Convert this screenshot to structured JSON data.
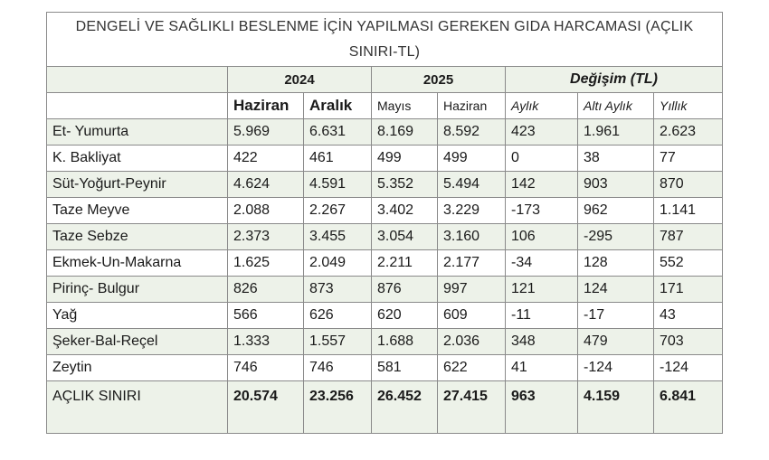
{
  "title": "DENGELİ VE SAĞLIKLI BESLENME İÇİN YAPILMASI GEREKEN GIDA HARCAMASI (AÇLIK SINIRI-TL)",
  "years": {
    "y2024": "2024",
    "y2025": "2025",
    "change": "Değişim (TL)"
  },
  "months": [
    "Haziran",
    "Aralık",
    "Mayıs",
    "Haziran",
    "Aylık",
    "Altı Aylık",
    "Yıllık"
  ],
  "rows": [
    {
      "label": "Et- Yumurta",
      "values": [
        "5.969",
        "6.631",
        "8.169",
        "8.592",
        "423",
        "1.961",
        "2.623"
      ]
    },
    {
      "label": "K. Bakliyat",
      "values": [
        "422",
        "461",
        "499",
        "499",
        "0",
        "38",
        "77"
      ]
    },
    {
      "label": "Süt-Yoğurt-Peynir",
      "values": [
        "4.624",
        "4.591",
        "5.352",
        "5.494",
        "142",
        "903",
        "870"
      ]
    },
    {
      "label": "Taze Meyve",
      "values": [
        "2.088",
        "2.267",
        "3.402",
        "3.229",
        "-173",
        "962",
        "1.141"
      ]
    },
    {
      "label": "Taze Sebze",
      "values": [
        "2.373",
        "3.455",
        "3.054",
        "3.160",
        "106",
        "-295",
        "787"
      ]
    },
    {
      "label": "Ekmek-Un-Makarna",
      "values": [
        "1.625",
        "2.049",
        "2.211",
        "2.177",
        "-34",
        "128",
        "552"
      ]
    },
    {
      "label": "Pirinç- Bulgur",
      "values": [
        "826",
        "873",
        "876",
        "997",
        "121",
        "124",
        "171"
      ]
    },
    {
      "label": "Yağ",
      "values": [
        "566",
        "626",
        "620",
        "609",
        "-11",
        "-17",
        "43"
      ]
    },
    {
      "label": "Şeker-Bal-Reçel",
      "values": [
        "1.333",
        "1.557",
        "1.688",
        "2.036",
        "348",
        "479",
        "703"
      ]
    },
    {
      "label": "Zeytin",
      "values": [
        "746",
        "746",
        "581",
        "622",
        "41",
        "-124",
        "-124"
      ]
    }
  ],
  "total": {
    "label": "AÇLIK SINIRI",
    "values": [
      "20.574",
      "23.256",
      "26.452",
      "27.415",
      "963",
      "4.159",
      "6.841"
    ]
  }
}
